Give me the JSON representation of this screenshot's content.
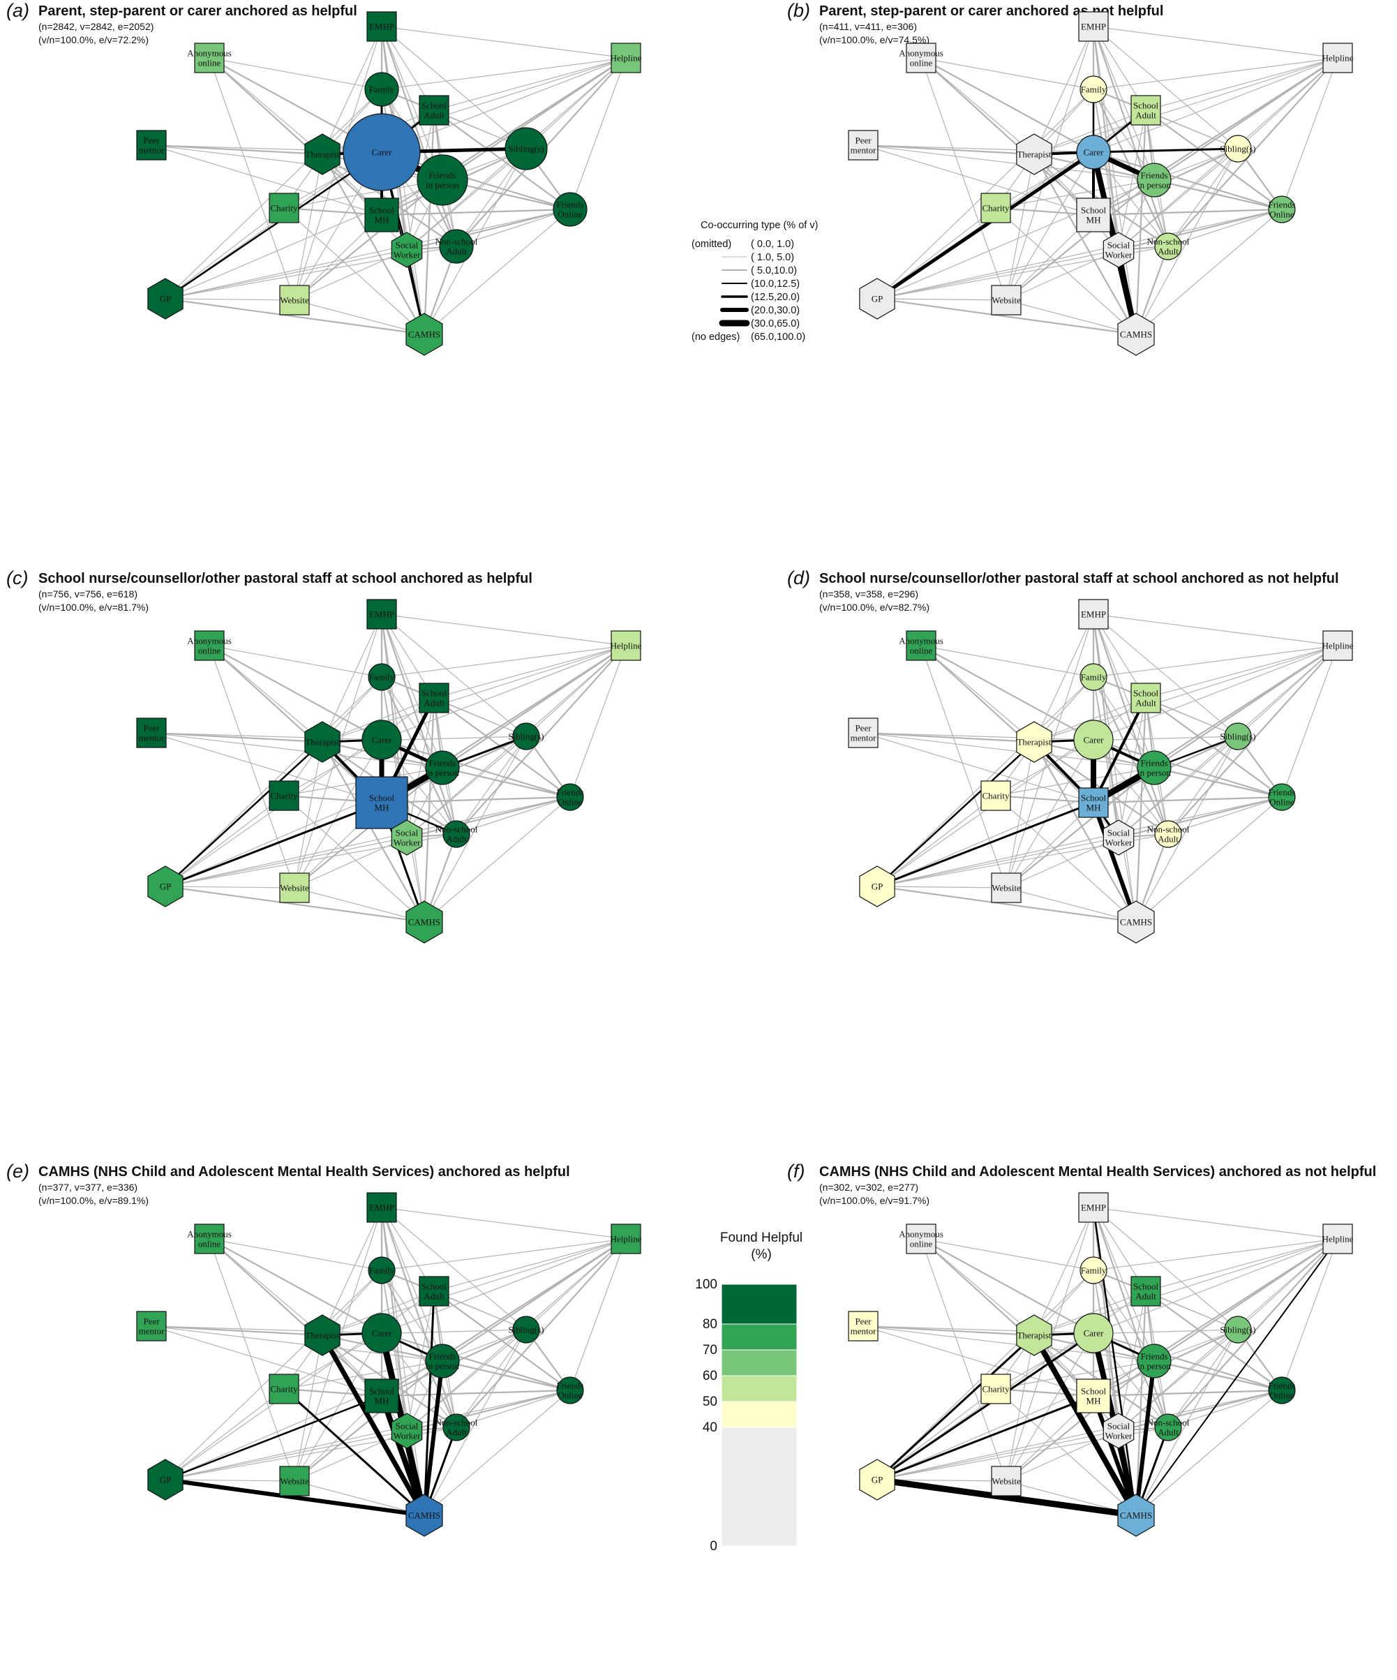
{
  "colors": {
    "bin_0_40": "#ececec",
    "bin_40_50": "#ffffcc",
    "bin_50_60": "#c2e699",
    "bin_60_70": "#78c679",
    "bin_70_80": "#31a354",
    "bin_80_100": "#006837",
    "anchor": "#2f74b5",
    "anchor_light": "#6baed6",
    "edge_grey": "#b3b3b3",
    "edge_dark": "#000000"
  },
  "nodes": [
    {
      "id": "EMHP",
      "label": "EMHP",
      "shape": "square"
    },
    {
      "id": "Anon",
      "label": "Anonymous\nonline",
      "shape": "square"
    },
    {
      "id": "Helpline",
      "label": "Helpline",
      "shape": "square"
    },
    {
      "id": "Family",
      "label": "Family",
      "shape": "circle"
    },
    {
      "id": "SchoolAdult",
      "label": "School\nAdult",
      "shape": "square"
    },
    {
      "id": "Peer",
      "label": "Peer\nmentor",
      "shape": "square"
    },
    {
      "id": "Therapist",
      "label": "Therapist",
      "shape": "hexagon"
    },
    {
      "id": "Carer",
      "label": "Carer",
      "shape": "circle"
    },
    {
      "id": "Siblings",
      "label": "Sibling(s)",
      "shape": "circle"
    },
    {
      "id": "FriendsIP",
      "label": "Friends\nin person",
      "shape": "circle"
    },
    {
      "id": "Charity",
      "label": "Charity",
      "shape": "square"
    },
    {
      "id": "SchoolMH",
      "label": "School\nMH",
      "shape": "square"
    },
    {
      "id": "FriendsOnline",
      "label": "Friends\nOnline",
      "shape": "circle"
    },
    {
      "id": "Social",
      "label": "Social\nWorker",
      "shape": "hexagon"
    },
    {
      "id": "NonSchool",
      "label": "Non-school\nAdult",
      "shape": "circle"
    },
    {
      "id": "GP",
      "label": "GP",
      "shape": "hexagon"
    },
    {
      "id": "Website",
      "label": "Website",
      "shape": "square"
    },
    {
      "id": "CAMHS",
      "label": "CAMHS",
      "shape": "hexagon"
    }
  ],
  "panels": [
    {
      "tag": "(a)",
      "title": "Parent, step-parent or carer anchored as helpful",
      "stat1": "(n=2842, v=2842, e=2052)",
      "stat2": "(v/n=100.0%, e/v=72.2%)",
      "anchor": "Carer",
      "anchor_tone": "dark",
      "fills": {
        "EMHP": "bin_80_100",
        "Anon": "bin_60_70",
        "Helpline": "bin_60_70",
        "Family": "bin_80_100",
        "SchoolAdult": "bin_80_100",
        "Peer": "bin_80_100",
        "Therapist": "bin_80_100",
        "Siblings": "bin_80_100",
        "FriendsIP": "bin_80_100",
        "Charity": "bin_70_80",
        "SchoolMH": "bin_80_100",
        "FriendsOnline": "bin_80_100",
        "Social": "bin_70_80",
        "NonSchool": "bin_80_100",
        "GP": "bin_80_100",
        "Website": "bin_50_60",
        "CAMHS": "bin_70_80"
      },
      "dark_edges": [
        [
          "Carer",
          "FriendsIP",
          9
        ],
        [
          "Carer",
          "Siblings",
          5
        ],
        [
          "Carer",
          "Therapist",
          4
        ],
        [
          "Carer",
          "SchoolMH",
          4
        ],
        [
          "Carer",
          "SchoolAdult",
          3
        ],
        [
          "Carer",
          "Family",
          3
        ],
        [
          "Carer",
          "GP",
          2.5
        ],
        [
          "Carer",
          "Social",
          2.5
        ],
        [
          "Social",
          "CAMHS",
          2.5
        ],
        [
          "Carer",
          "CAMHS",
          2
        ]
      ]
    },
    {
      "tag": "(b)",
      "title": "Parent, step-parent or carer anchored as not helpful",
      "stat1": "(n=411, v=411, e=306)",
      "stat2": "(v/n=100.0%, e/v=74.5%)",
      "anchor": "Carer",
      "anchor_tone": "light",
      "fills": {
        "EMHP": "bin_0_40",
        "Anon": "bin_0_40",
        "Helpline": "bin_0_40",
        "Family": "bin_40_50",
        "SchoolAdult": "bin_50_60",
        "Peer": "bin_0_40",
        "Therapist": "bin_0_40",
        "Siblings": "bin_40_50",
        "FriendsIP": "bin_60_70",
        "Charity": "bin_50_60",
        "SchoolMH": "bin_0_40",
        "FriendsOnline": "bin_60_70",
        "Social": "bin_0_40",
        "NonSchool": "bin_50_60",
        "GP": "bin_0_40",
        "Website": "bin_0_40",
        "CAMHS": "bin_0_40"
      },
      "dark_edges": [
        [
          "Carer",
          "GP",
          5
        ],
        [
          "Carer",
          "CAMHS",
          8
        ],
        [
          "Carer",
          "FriendsIP",
          7
        ],
        [
          "Carer",
          "SchoolMH",
          4
        ],
        [
          "Carer",
          "Therapist",
          4
        ],
        [
          "Carer",
          "Social",
          4
        ],
        [
          "Carer",
          "Siblings",
          3
        ],
        [
          "Carer",
          "SchoolAdult",
          3
        ],
        [
          "Carer",
          "Family",
          2.5
        ],
        [
          "Social",
          "CAMHS",
          6
        ]
      ]
    },
    {
      "tag": "(c)",
      "title": "School nurse/counsellor/other pastoral staff at school anchored as helpful",
      "stat1": "(n=756, v=756, e=618)",
      "stat2": "(v/n=100.0%, e/v=81.7%)",
      "anchor": "SchoolMH",
      "anchor_tone": "dark",
      "fills": {
        "EMHP": "bin_80_100",
        "Anon": "bin_70_80",
        "Helpline": "bin_50_60",
        "Family": "bin_80_100",
        "SchoolAdult": "bin_80_100",
        "Peer": "bin_80_100",
        "Therapist": "bin_80_100",
        "Carer": "bin_80_100",
        "Siblings": "bin_80_100",
        "FriendsIP": "bin_80_100",
        "Charity": "bin_80_100",
        "FriendsOnline": "bin_80_100",
        "Social": "bin_60_70",
        "NonSchool": "bin_80_100",
        "GP": "bin_70_80",
        "Website": "bin_50_60",
        "CAMHS": "bin_70_80"
      },
      "dark_edges": [
        [
          "SchoolMH",
          "FriendsIP",
          9
        ],
        [
          "SchoolMH",
          "Carer",
          7
        ],
        [
          "SchoolMH",
          "SchoolAdult",
          5
        ],
        [
          "SchoolMH",
          "Therapist",
          4
        ],
        [
          "SchoolMH",
          "GP",
          3
        ],
        [
          "SchoolMH",
          "CAMHS",
          3
        ],
        [
          "SchoolMH",
          "Social",
          3
        ],
        [
          "SchoolMH",
          "NonSchool",
          2.5
        ],
        [
          "Carer",
          "FriendsIP",
          5
        ],
        [
          "Carer",
          "Therapist",
          3
        ],
        [
          "FriendsIP",
          "Siblings",
          3
        ],
        [
          "Therapist",
          "GP",
          2.5
        ]
      ]
    },
    {
      "tag": "(d)",
      "title": "School nurse/counsellor/other pastoral staff at school anchored as not helpful",
      "stat1": "(n=358, v=358, e=296)",
      "stat2": "(v/n=100.0%, e/v=82.7%)",
      "anchor": "SchoolMH",
      "anchor_tone": "light",
      "fills": {
        "EMHP": "bin_0_40",
        "Anon": "bin_70_80",
        "Helpline": "bin_0_40",
        "Family": "bin_50_60",
        "SchoolAdult": "bin_50_60",
        "Peer": "bin_0_40",
        "Therapist": "bin_40_50",
        "Carer": "bin_50_60",
        "Siblings": "bin_60_70",
        "FriendsIP": "bin_70_80",
        "Charity": "bin_40_50",
        "FriendsOnline": "bin_70_80",
        "Social": "bin_0_40",
        "NonSchool": "bin_40_50",
        "GP": "bin_40_50",
        "Website": "bin_0_40",
        "CAMHS": "bin_0_40"
      },
      "dark_edges": [
        [
          "SchoolMH",
          "FriendsIP",
          9
        ],
        [
          "SchoolMH",
          "Carer",
          8
        ],
        [
          "SchoolMH",
          "CAMHS",
          6
        ],
        [
          "SchoolMH",
          "SchoolAdult",
          4
        ],
        [
          "SchoolMH",
          "Therapist",
          4
        ],
        [
          "SchoolMH",
          "GP",
          3
        ],
        [
          "SchoolMH",
          "Social",
          3
        ],
        [
          "Carer",
          "FriendsIP",
          4
        ],
        [
          "Carer",
          "Therapist",
          3
        ],
        [
          "Therapist",
          "GP",
          2.5
        ],
        [
          "FriendsIP",
          "Siblings",
          2.5
        ]
      ]
    },
    {
      "tag": "(e)",
      "title": "CAMHS (NHS Child and Adolescent Mental Health Services) anchored as helpful",
      "stat1": "(n=377, v=377, e=336)",
      "stat2": "(v/n=100.0%, e/v=89.1%)",
      "anchor": "CAMHS",
      "anchor_tone": "dark",
      "fills": {
        "EMHP": "bin_80_100",
        "Anon": "bin_70_80",
        "Helpline": "bin_70_80",
        "Family": "bin_80_100",
        "SchoolAdult": "bin_80_100",
        "Peer": "bin_70_80",
        "Therapist": "bin_80_100",
        "Carer": "bin_80_100",
        "Siblings": "bin_80_100",
        "FriendsIP": "bin_80_100",
        "Charity": "bin_70_80",
        "SchoolMH": "bin_80_100",
        "FriendsOnline": "bin_80_100",
        "Social": "bin_70_80",
        "NonSchool": "bin_80_100",
        "GP": "bin_80_100",
        "Website": "bin_70_80"
      },
      "dark_edges": [
        [
          "CAMHS",
          "Carer",
          9
        ],
        [
          "CAMHS",
          "SchoolMH",
          8
        ],
        [
          "CAMHS",
          "Therapist",
          7
        ],
        [
          "CAMHS",
          "FriendsIP",
          6
        ],
        [
          "CAMHS",
          "GP",
          6
        ],
        [
          "CAMHS",
          "Social",
          4
        ],
        [
          "CAMHS",
          "NonSchool",
          3
        ],
        [
          "CAMHS",
          "SchoolAdult",
          3
        ],
        [
          "CAMHS",
          "Charity",
          3
        ],
        [
          "Carer",
          "Therapist",
          3
        ],
        [
          "Carer",
          "FriendsIP",
          3
        ],
        [
          "GP",
          "SchoolMH",
          2.5
        ]
      ]
    },
    {
      "tag": "(f)",
      "title": "CAMHS (NHS Child and Adolescent Mental Health Services) anchored as not helpful",
      "stat1": "(n=302, v=302, e=277)",
      "stat2": "(v/n=100.0%, e/v=91.7%)",
      "anchor": "CAMHS",
      "anchor_tone": "light",
      "fills": {
        "EMHP": "bin_0_40",
        "Anon": "bin_0_40",
        "Helpline": "bin_0_40",
        "Family": "bin_40_50",
        "SchoolAdult": "bin_70_80",
        "Peer": "bin_40_50",
        "Therapist": "bin_50_60",
        "Carer": "bin_50_60",
        "Siblings": "bin_60_70",
        "FriendsIP": "bin_70_80",
        "Charity": "bin_40_50",
        "SchoolMH": "bin_40_50",
        "FriendsOnline": "bin_80_100",
        "Social": "bin_0_40",
        "NonSchool": "bin_70_80",
        "GP": "bin_40_50",
        "Website": "bin_0_40"
      },
      "dark_edges": [
        [
          "CAMHS",
          "GP",
          9
        ],
        [
          "CAMHS",
          "Therapist",
          8
        ],
        [
          "CAMHS",
          "Carer",
          8
        ],
        [
          "CAMHS",
          "SchoolMH",
          6
        ],
        [
          "CAMHS",
          "FriendsIP",
          6
        ],
        [
          "CAMHS",
          "Social",
          5
        ],
        [
          "CAMHS",
          "NonSchool",
          3
        ],
        [
          "CAMHS",
          "Helpline",
          2
        ],
        [
          "CAMHS",
          "EMHP",
          2.5
        ],
        [
          "GP",
          "Carer",
          3
        ],
        [
          "GP",
          "Therapist",
          3
        ],
        [
          "GP",
          "SchoolMH",
          3
        ],
        [
          "Carer",
          "FriendsIP",
          3
        ],
        [
          "Carer",
          "Therapist",
          3
        ]
      ]
    }
  ],
  "edge_legend": {
    "title": "Co-occurring type (% of v)",
    "rows": [
      {
        "label": "(omitted)",
        "range": "( 0.0, 1.0)",
        "stroke": "none"
      },
      {
        "label": "",
        "range": "( 1.0, 5.0)",
        "stroke": "grey_thin"
      },
      {
        "label": "",
        "range": "( 5.0,10.0)",
        "stroke": "grey"
      },
      {
        "label": "",
        "range": "(10.0,12.5)",
        "stroke": "black_1"
      },
      {
        "label": "",
        "range": "(12.5,20.0)",
        "stroke": "black_2"
      },
      {
        "label": "",
        "range": "(20.0,30.0)",
        "stroke": "black_3"
      },
      {
        "label": "",
        "range": "(30.0,65.0)",
        "stroke": "black_4"
      },
      {
        "label": "(no edges)",
        "range": "(65.0,100.0)",
        "stroke": "none"
      }
    ]
  },
  "color_scale": {
    "title_line1": "Found Helpful",
    "title_line2": "(%)",
    "ticks": [
      "100",
      "80",
      "70",
      "60",
      "50",
      "40",
      "0"
    ],
    "bands": [
      {
        "from": 80,
        "to": 100,
        "color": "bin_80_100"
      },
      {
        "from": 70,
        "to": 80,
        "color": "bin_70_80"
      },
      {
        "from": 60,
        "to": 70,
        "color": "bin_60_70"
      },
      {
        "from": 50,
        "to": 60,
        "color": "bin_50_60"
      },
      {
        "from": 40,
        "to": 50,
        "color": "bin_40_50"
      },
      {
        "from": 0,
        "to": 40,
        "color": "bin_0_40"
      }
    ]
  }
}
